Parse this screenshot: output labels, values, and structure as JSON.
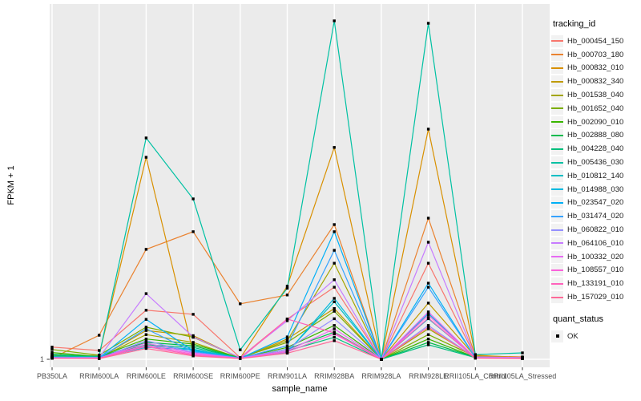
{
  "colors": {
    "figure_bg": "#FFFFFF",
    "panel_bg": "#EBEBEB",
    "gridline": "#FFFFFF",
    "tick_mark": "#333333",
    "tick_text": "#4D4D4D",
    "axis_title_text": "#000000",
    "legend_key_bg": "#F2F2F2",
    "point_color": "#000000"
  },
  "legend": {
    "tracking_title": "tracking_id",
    "quant_title": "quant_status",
    "quant_items": [
      {
        "label": "OK",
        "marker": "filled-square",
        "marker_color": "#000000"
      }
    ]
  },
  "chart_data": {
    "type": "line",
    "title": "",
    "xlabel": "sample_name",
    "ylabel": "FPKM + 1",
    "legend_position": "right",
    "grid": "white vertical gridline per category plus baseline gridline at y tick 1",
    "y_axis_tick_labels": [
      "1"
    ],
    "value_scale_note": "Only the tick 'FPKM+1 = 1' is labeled on the y axis; series values below are relative heights where 0 = baseline (FPKM+1 = 1) and 100 = tallest peak.",
    "point_marker": {
      "shape": "filled-square",
      "color": "#000000",
      "meaning": "quant_status OK"
    },
    "x_categories": [
      "PB350LA",
      "RRIM600LA",
      "RRIM600LE",
      "RRIM600SE",
      "RRIM600PE",
      "RRIM901LA",
      "RRIM928BA",
      "RRIM928LA",
      "RRIM928LE",
      "RRII105LA_Control",
      "RRII105LA_Stressed"
    ],
    "series": [
      {
        "name": "Hb_000454_150",
        "color": "#F8766D",
        "values": [
          3.6,
          2.6,
          14.5,
          13.3,
          0.5,
          11.9,
          21.3,
          0,
          28.4,
          0.7,
          0.5
        ]
      },
      {
        "name": "Hb_000703_180",
        "color": "#EA8331",
        "values": [
          0.3,
          7.1,
          32.5,
          37.7,
          16.4,
          19.0,
          39.8,
          0,
          41.7,
          1.0,
          0.7
        ]
      },
      {
        "name": "Hb_000832_010",
        "color": "#D89000",
        "values": [
          0.5,
          1.2,
          59.7,
          1.9,
          0.3,
          21.6,
          62.6,
          0,
          68.0,
          1.2,
          0.5
        ]
      },
      {
        "name": "Hb_000832_340",
        "color": "#C09B00",
        "values": [
          1.0,
          0.5,
          8.5,
          7.0,
          0.3,
          6.0,
          15.0,
          0,
          16.6,
          0.8,
          0.4
        ]
      },
      {
        "name": "Hb_001538_040",
        "color": "#A3A500",
        "values": [
          0.5,
          0.4,
          7.3,
          5.0,
          0.3,
          5.5,
          28.4,
          0,
          9.0,
          0.7,
          0.4
        ]
      },
      {
        "name": "Hb_001652_040",
        "color": "#7CAE00",
        "values": [
          2.9,
          1.2,
          9.5,
          6.5,
          0.5,
          5.0,
          14.2,
          0,
          7.3,
          0.8,
          0.5
        ]
      },
      {
        "name": "Hb_002090_010",
        "color": "#39B600",
        "values": [
          2.0,
          0.8,
          6.0,
          4.5,
          0.4,
          3.5,
          10.0,
          0,
          6.0,
          0.6,
          0.4
        ]
      },
      {
        "name": "Hb_002888_080",
        "color": "#00BB4E",
        "values": [
          1.5,
          0.7,
          5.0,
          4.0,
          0.3,
          3.0,
          8.0,
          0,
          5.0,
          0.6,
          0.3
        ]
      },
      {
        "name": "Hb_004228_040",
        "color": "#00BF7D",
        "values": [
          1.2,
          0.6,
          4.3,
          3.5,
          0.3,
          2.5,
          6.5,
          0,
          4.3,
          0.5,
          0.3
        ]
      },
      {
        "name": "Hb_005436_030",
        "color": "#00C1A3",
        "values": [
          0.5,
          1.0,
          65.4,
          47.4,
          2.8,
          21.0,
          100.0,
          0,
          99.3,
          1.4,
          1.9
        ]
      },
      {
        "name": "Hb_010812_140",
        "color": "#00BFC4",
        "values": [
          0.8,
          0.5,
          4.0,
          3.0,
          0.3,
          2.2,
          17.0,
          0,
          12.0,
          0.5,
          0.3
        ]
      },
      {
        "name": "Hb_014988_030",
        "color": "#00BAE0",
        "values": [
          0.6,
          0.5,
          3.5,
          2.8,
          0.3,
          2.0,
          18.0,
          0,
          13.5,
          0.5,
          0.3
        ]
      },
      {
        "name": "Hb_023547_020",
        "color": "#00B0F6",
        "values": [
          0.5,
          0.4,
          11.8,
          2.5,
          0.3,
          6.6,
          37.7,
          0,
          22.5,
          0.5,
          0.3
        ]
      },
      {
        "name": "Hb_031474_020",
        "color": "#35A2FF",
        "values": [
          0.4,
          0.4,
          9.0,
          2.2,
          0.3,
          4.0,
          32.2,
          0,
          21.3,
          0.5,
          0.3
        ]
      },
      {
        "name": "Hb_060822_010",
        "color": "#9590FF",
        "values": [
          0.4,
          0.3,
          5.5,
          2.0,
          0.3,
          3.0,
          12.0,
          0,
          10.0,
          0.4,
          0.3
        ]
      },
      {
        "name": "Hb_064106_010",
        "color": "#C77CFF",
        "values": [
          0.5,
          0.5,
          19.4,
          6.6,
          0.5,
          11.4,
          23.5,
          0,
          34.6,
          0.7,
          0.5
        ]
      },
      {
        "name": "Hb_100332_020",
        "color": "#E76BF3",
        "values": [
          0.4,
          0.3,
          4.8,
          1.8,
          0.3,
          2.5,
          9.0,
          0,
          14.0,
          0.4,
          0.3
        ]
      },
      {
        "name": "Hb_108557_010",
        "color": "#FA62DB",
        "values": [
          0.3,
          0.3,
          4.2,
          1.5,
          0.2,
          2.2,
          7.5,
          0,
          13.0,
          0.4,
          0.3
        ]
      },
      {
        "name": "Hb_133191_010",
        "color": "#FF62BC",
        "values": [
          0.3,
          0.3,
          3.8,
          1.2,
          0.2,
          11.9,
          7.8,
          0,
          12.2,
          0.4,
          0.3
        ]
      },
      {
        "name": "Hb_157029_010",
        "color": "#FF6A98",
        "values": [
          0.3,
          0.2,
          3.2,
          1.0,
          0.2,
          1.8,
          5.5,
          0,
          9.5,
          0.3,
          0.2
        ]
      }
    ]
  }
}
